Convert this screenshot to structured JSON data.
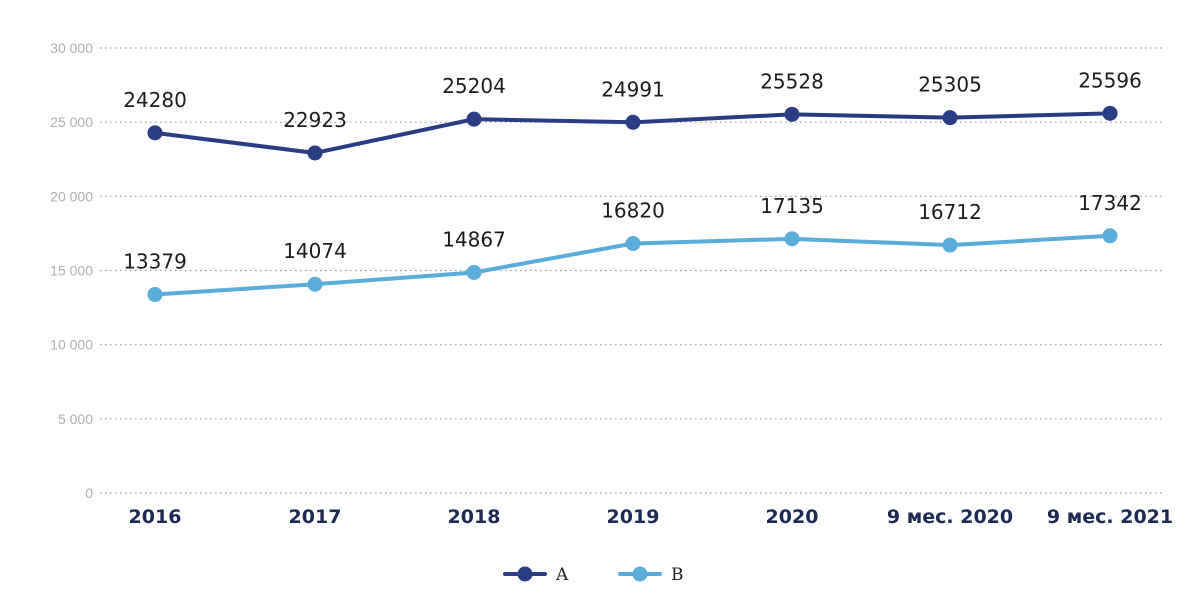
{
  "chart_data": {
    "type": "line",
    "categories": [
      "2016",
      "2017",
      "2018",
      "2019",
      "2020",
      "9 мес. 2020",
      "9 мес. 2021"
    ],
    "series": [
      {
        "name": "A",
        "color": "#2a3d84",
        "values": [
          24280,
          22923,
          25204,
          24991,
          25528,
          25305,
          25596
        ],
        "value_labels": [
          "24280",
          "22923",
          "25204",
          "24991",
          "25528",
          "25305",
          "25596"
        ]
      },
      {
        "name": "B",
        "color": "#5aadd9",
        "values": [
          13379,
          14074,
          14867,
          16820,
          17135,
          16712,
          17342
        ],
        "value_labels": [
          "13379",
          "14074",
          "14867",
          "16820",
          "17135",
          "16712",
          "17342"
        ]
      }
    ],
    "ylim": [
      0,
      30000
    ],
    "yticks": [
      0,
      5000,
      10000,
      15000,
      20000,
      25000,
      30000
    ],
    "ytick_labels": [
      "0",
      "5 000",
      "10 000",
      "15 000",
      "20 000",
      "25 000",
      "30 000"
    ],
    "grid": "horizontal-dotted",
    "legend": "bottom-center"
  }
}
